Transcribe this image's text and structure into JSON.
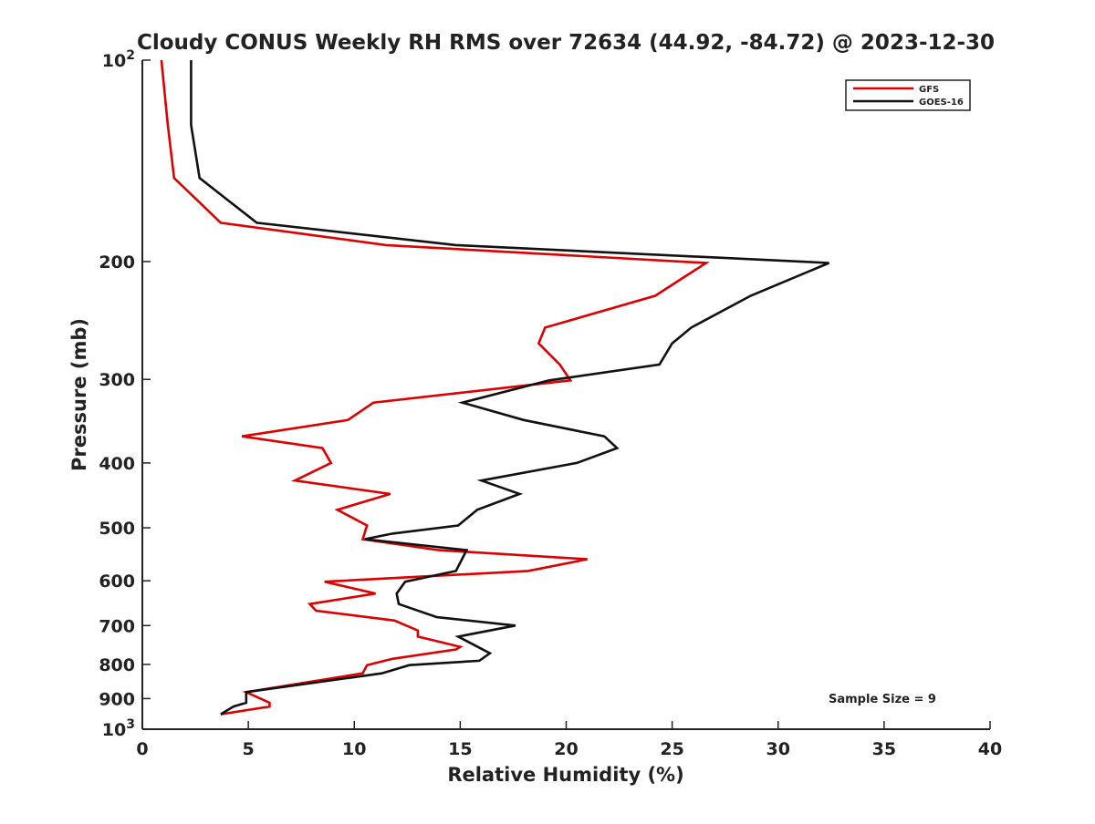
{
  "chart_data": {
    "type": "line",
    "title": "Cloudy CONUS Weekly RH RMS over 72634 (44.92, -84.72) @ 2023-12-30",
    "xlabel": "Relative Humidity (%)",
    "ylabel": "Pressure (mb)",
    "xlim": [
      0,
      40
    ],
    "ylim": [
      100,
      1000
    ],
    "y_scale": "log",
    "y_reversed": true,
    "grid": false,
    "legend_position": "top-right",
    "x_ticks": [
      0,
      5,
      10,
      15,
      20,
      25,
      30,
      35,
      40
    ],
    "y_ticks": [
      {
        "value": 100,
        "label": "10",
        "sup": "2"
      },
      {
        "value": 200,
        "label": "200",
        "sup": ""
      },
      {
        "value": 300,
        "label": "300",
        "sup": ""
      },
      {
        "value": 400,
        "label": "400",
        "sup": ""
      },
      {
        "value": 500,
        "label": "500",
        "sup": ""
      },
      {
        "value": 600,
        "label": "600",
        "sup": ""
      },
      {
        "value": 700,
        "label": "700",
        "sup": ""
      },
      {
        "value": 800,
        "label": "800",
        "sup": ""
      },
      {
        "value": 900,
        "label": "900",
        "sup": ""
      },
      {
        "value": 1000,
        "label": "10",
        "sup": "3"
      }
    ],
    "annotation": "Sample Size = 9",
    "series": [
      {
        "name": "GFS",
        "color": "#dd0000",
        "points": [
          [
            0.9,
            100
          ],
          [
            1.2,
            125
          ],
          [
            1.5,
            150
          ],
          [
            3.7,
            175
          ],
          [
            11.5,
            189
          ],
          [
            26.6,
            201
          ],
          [
            24.2,
            225
          ],
          [
            19.0,
            251
          ],
          [
            18.7,
            265
          ],
          [
            19.7,
            285
          ],
          [
            20.2,
            301
          ],
          [
            10.9,
            325
          ],
          [
            9.7,
            345
          ],
          [
            4.7,
            365
          ],
          [
            8.5,
            380
          ],
          [
            8.9,
            400
          ],
          [
            7.2,
            425
          ],
          [
            11.7,
            445
          ],
          [
            9.2,
            470
          ],
          [
            10.6,
            496
          ],
          [
            10.4,
            520
          ],
          [
            14.0,
            540
          ],
          [
            21.0,
            557
          ],
          [
            18.2,
            580
          ],
          [
            8.6,
            602
          ],
          [
            11.0,
            627
          ],
          [
            7.9,
            650
          ],
          [
            8.2,
            665
          ],
          [
            11.9,
            688
          ],
          [
            13.0,
            712
          ],
          [
            13.0,
            727
          ],
          [
            15.0,
            753
          ],
          [
            14.8,
            760
          ],
          [
            11.8,
            785
          ],
          [
            10.6,
            802
          ],
          [
            10.4,
            825
          ],
          [
            4.9,
            880
          ],
          [
            6.0,
            913
          ],
          [
            6.0,
            925
          ],
          [
            3.7,
            950
          ]
        ]
      },
      {
        "name": "GOES-16",
        "color": "#111111",
        "points": [
          [
            2.3,
            100
          ],
          [
            2.3,
            125
          ],
          [
            2.7,
            150
          ],
          [
            5.4,
            175
          ],
          [
            14.8,
            189
          ],
          [
            32.4,
            201
          ],
          [
            28.7,
            225
          ],
          [
            25.9,
            251
          ],
          [
            25.0,
            265
          ],
          [
            24.4,
            285
          ],
          [
            19.2,
            301
          ],
          [
            15.1,
            325
          ],
          [
            18.0,
            345
          ],
          [
            21.8,
            365
          ],
          [
            22.4,
            380
          ],
          [
            20.5,
            400
          ],
          [
            16.0,
            425
          ],
          [
            17.8,
            445
          ],
          [
            15.8,
            470
          ],
          [
            14.9,
            496
          ],
          [
            11.8,
            510
          ],
          [
            10.5,
            520
          ],
          [
            15.3,
            540
          ],
          [
            14.8,
            580
          ],
          [
            12.4,
            602
          ],
          [
            12.0,
            627
          ],
          [
            12.1,
            650
          ],
          [
            13.9,
            680
          ],
          [
            17.6,
            700
          ],
          [
            14.9,
            727
          ],
          [
            16.4,
            770
          ],
          [
            15.9,
            790
          ],
          [
            12.6,
            802
          ],
          [
            11.3,
            825
          ],
          [
            4.9,
            880
          ],
          [
            4.9,
            913
          ],
          [
            4.3,
            925
          ],
          [
            3.7,
            950
          ]
        ]
      }
    ]
  }
}
